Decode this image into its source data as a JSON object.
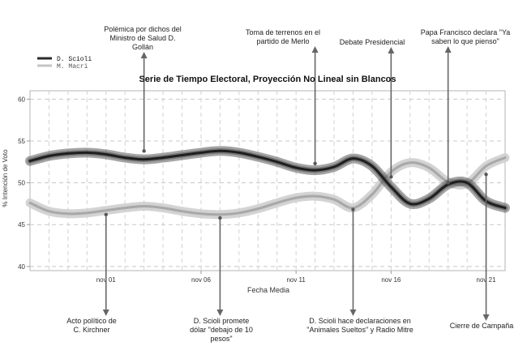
{
  "chart_data": {
    "type": "line",
    "title": "Serie de Tiempo Electoral, Proyección No Lineal sin Blancos",
    "xlabel": "Fecha Media",
    "ylabel": "% Intención de Voto",
    "xlim": [
      "2015-10-28",
      "2015-11-22"
    ],
    "ylim": [
      39.5,
      61
    ],
    "yticks": [
      40,
      45,
      50,
      55,
      60
    ],
    "xticks": [
      {
        "date": "2015-11-01",
        "label": "nov 01"
      },
      {
        "date": "2015-11-06",
        "label": "nov 06"
      },
      {
        "date": "2015-11-11",
        "label": "nov 11"
      },
      {
        "date": "2015-11-16",
        "label": "nov 16"
      },
      {
        "date": "2015-11-21",
        "label": "nov 21"
      }
    ],
    "grid": true,
    "legend_position": "top-left",
    "series": [
      {
        "name": "D. Scioli",
        "color": "#2b2b2b",
        "x": [
          "2015-10-28",
          "2015-10-29",
          "2015-10-30",
          "2015-10-31",
          "2015-11-01",
          "2015-11-02",
          "2015-11-03",
          "2015-11-04",
          "2015-11-05",
          "2015-11-06",
          "2015-11-07",
          "2015-11-08",
          "2015-11-09",
          "2015-11-10",
          "2015-11-11",
          "2015-11-12",
          "2015-11-13",
          "2015-11-14",
          "2015-11-15",
          "2015-11-16",
          "2015-11-17",
          "2015-11-18",
          "2015-11-19",
          "2015-11-20",
          "2015-11-21",
          "2015-11-22"
        ],
        "y": [
          52.6,
          53.2,
          53.5,
          53.6,
          53.4,
          53.0,
          52.8,
          53.0,
          53.3,
          53.6,
          53.8,
          53.6,
          53.1,
          52.5,
          51.8,
          51.5,
          51.9,
          52.9,
          52.0,
          49.5,
          47.5,
          48.1,
          49.8,
          50.0,
          47.8,
          47.0
        ]
      },
      {
        "name": "M. Macri",
        "color": "#b8b8b8",
        "x": [
          "2015-10-28",
          "2015-10-29",
          "2015-10-30",
          "2015-10-31",
          "2015-11-01",
          "2015-11-02",
          "2015-11-03",
          "2015-11-04",
          "2015-11-05",
          "2015-11-06",
          "2015-11-07",
          "2015-11-08",
          "2015-11-09",
          "2015-11-10",
          "2015-11-11",
          "2015-11-12",
          "2015-11-13",
          "2015-11-14",
          "2015-11-15",
          "2015-11-16",
          "2015-11-17",
          "2015-11-18",
          "2015-11-19",
          "2015-11-20",
          "2015-11-21",
          "2015-11-22"
        ],
        "y": [
          47.6,
          46.6,
          46.3,
          46.4,
          46.7,
          47.0,
          47.2,
          47.0,
          46.6,
          46.3,
          46.2,
          46.4,
          46.9,
          47.6,
          48.2,
          48.4,
          48.0,
          47.0,
          48.6,
          51.3,
          52.4,
          51.8,
          50.1,
          49.9,
          52.0,
          53.0
        ]
      }
    ],
    "annotations": [
      {
        "id": "acto-politico",
        "date": "2015-11-01",
        "value": 46.2,
        "side": "below",
        "lines": [
          "Acto político de",
          "C. Kirchner"
        ]
      },
      {
        "id": "polemica-gollan",
        "date": "2015-11-03",
        "value": 53.8,
        "side": "above",
        "lines": [
          "Polémica por dichos del",
          "Ministro de Salud D.",
          "Gollán"
        ]
      },
      {
        "id": "scioli-dolar",
        "date": "2015-11-07",
        "value": 45.8,
        "side": "below",
        "lines": [
          "D. Scioli promete",
          "dólar \"debajo de 10",
          "pesos\""
        ]
      },
      {
        "id": "terrenos-merlo",
        "date": "2015-11-12",
        "value": 52.3,
        "side": "above",
        "lines": [
          "Toma de terrenos en el",
          "partido de Merlo"
        ]
      },
      {
        "id": "animales-sueltos",
        "date": "2015-11-14",
        "value": 46.8,
        "side": "below",
        "lines": [
          "D. Scioli hace declaraciones en",
          "\"Animales Sueltos\" y Radio Mitre"
        ]
      },
      {
        "id": "debate",
        "date": "2015-11-16",
        "value": 50.7,
        "side": "above",
        "lines": [
          "Debate Presidencial"
        ]
      },
      {
        "id": "papa-francisco",
        "date": "2015-11-19",
        "value": 50.0,
        "side": "above",
        "lines": [
          "Papa Francisco declara \"Ya",
          "saben lo que pienso\""
        ]
      },
      {
        "id": "cierre-campana",
        "date": "2015-11-21",
        "value": 51.0,
        "side": "below",
        "lines": [
          "Cierre de Campaña"
        ]
      }
    ]
  }
}
